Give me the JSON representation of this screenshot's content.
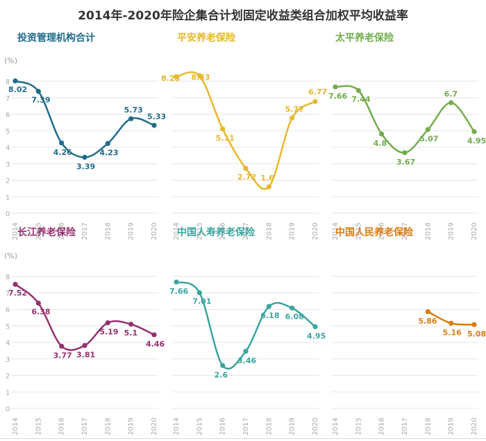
{
  "title": "2014年-2020年险企集合计划固定收益类组合加权平均收益率",
  "y_unit": "(%)",
  "chart_data": [
    {
      "type": "line",
      "title": "投资管理机构合计",
      "color": "#1f6b8c",
      "x": [
        "2014",
        "2015",
        "2016",
        "2017",
        "2018",
        "2019",
        "2020"
      ],
      "values": [
        8.02,
        7.39,
        4.26,
        3.39,
        4.23,
        5.73,
        5.33
      ],
      "labels": [
        "8.02",
        "7.39",
        "4.26",
        "3.39",
        "4.23",
        "5.73",
        "5.33"
      ],
      "ylim": [
        0,
        8
      ],
      "yticks": [
        "0",
        "1",
        "2",
        "3",
        "4",
        "5",
        "6",
        "7",
        "8"
      ],
      "grid": true
    },
    {
      "type": "line",
      "title": "平安养老保险",
      "color": "#e8b72b",
      "x": [
        "2014",
        "2015",
        "2016",
        "2017",
        "2018",
        "2019",
        "2020"
      ],
      "values": [
        8.28,
        8.33,
        5.11,
        2.72,
        1.6,
        5.77,
        6.77
      ],
      "labels": [
        "8.28",
        "8.33",
        "5.11",
        "2.72",
        "1.6",
        "5.77",
        "6.77"
      ],
      "ylim": [
        0,
        8
      ],
      "grid": true
    },
    {
      "type": "line",
      "title": "太平养老保险",
      "color": "#72ac4d",
      "x": [
        "2014",
        "2015",
        "2016",
        "2017",
        "2018",
        "2019",
        "2020"
      ],
      "values": [
        7.66,
        7.44,
        4.8,
        3.67,
        5.07,
        6.7,
        4.95
      ],
      "labels": [
        "7.66",
        "7.44",
        "4.8",
        "3.67",
        "5.07",
        "6.7",
        "4.95"
      ],
      "ylim": [
        0,
        8
      ],
      "grid": true
    },
    {
      "type": "line",
      "title": "长江养老保险",
      "color": "#93306e",
      "x": [
        "2014",
        "2015",
        "2016",
        "2017",
        "2018",
        "2019",
        "2020"
      ],
      "values": [
        7.52,
        6.38,
        3.77,
        3.81,
        5.19,
        5.1,
        4.46
      ],
      "labels": [
        "7.52",
        "6.38",
        "3.77",
        "3.81",
        "5.19",
        "5.1",
        "4.46"
      ],
      "ylim": [
        0,
        8
      ],
      "yticks": [
        "0",
        "1",
        "2",
        "3",
        "4",
        "5",
        "6",
        "7",
        "8"
      ],
      "grid": true
    },
    {
      "type": "line",
      "title": "中国人寿养老保险",
      "color": "#3aa59f",
      "x": [
        "2014",
        "2015",
        "2016",
        "2017",
        "2018",
        "2019",
        "2020"
      ],
      "values": [
        7.66,
        7.01,
        2.6,
        3.46,
        6.18,
        6.08,
        4.95
      ],
      "labels": [
        "7.66",
        "7.01",
        "2.6",
        "3.46",
        "6.18",
        "6.08",
        "4.95"
      ],
      "ylim": [
        0,
        8
      ],
      "grid": true
    },
    {
      "type": "line",
      "title": "中国人民养老保险",
      "color": "#db7b12",
      "x": [
        "2014",
        "2015",
        "2016",
        "2017",
        "2018",
        "2019",
        "2020"
      ],
      "values": [
        null,
        null,
        null,
        null,
        5.86,
        5.16,
        5.08
      ],
      "labels": [
        "",
        "",
        "",
        "",
        "5.86",
        "5.16",
        "5.08"
      ],
      "ylim": [
        0,
        8
      ],
      "grid": true
    }
  ]
}
